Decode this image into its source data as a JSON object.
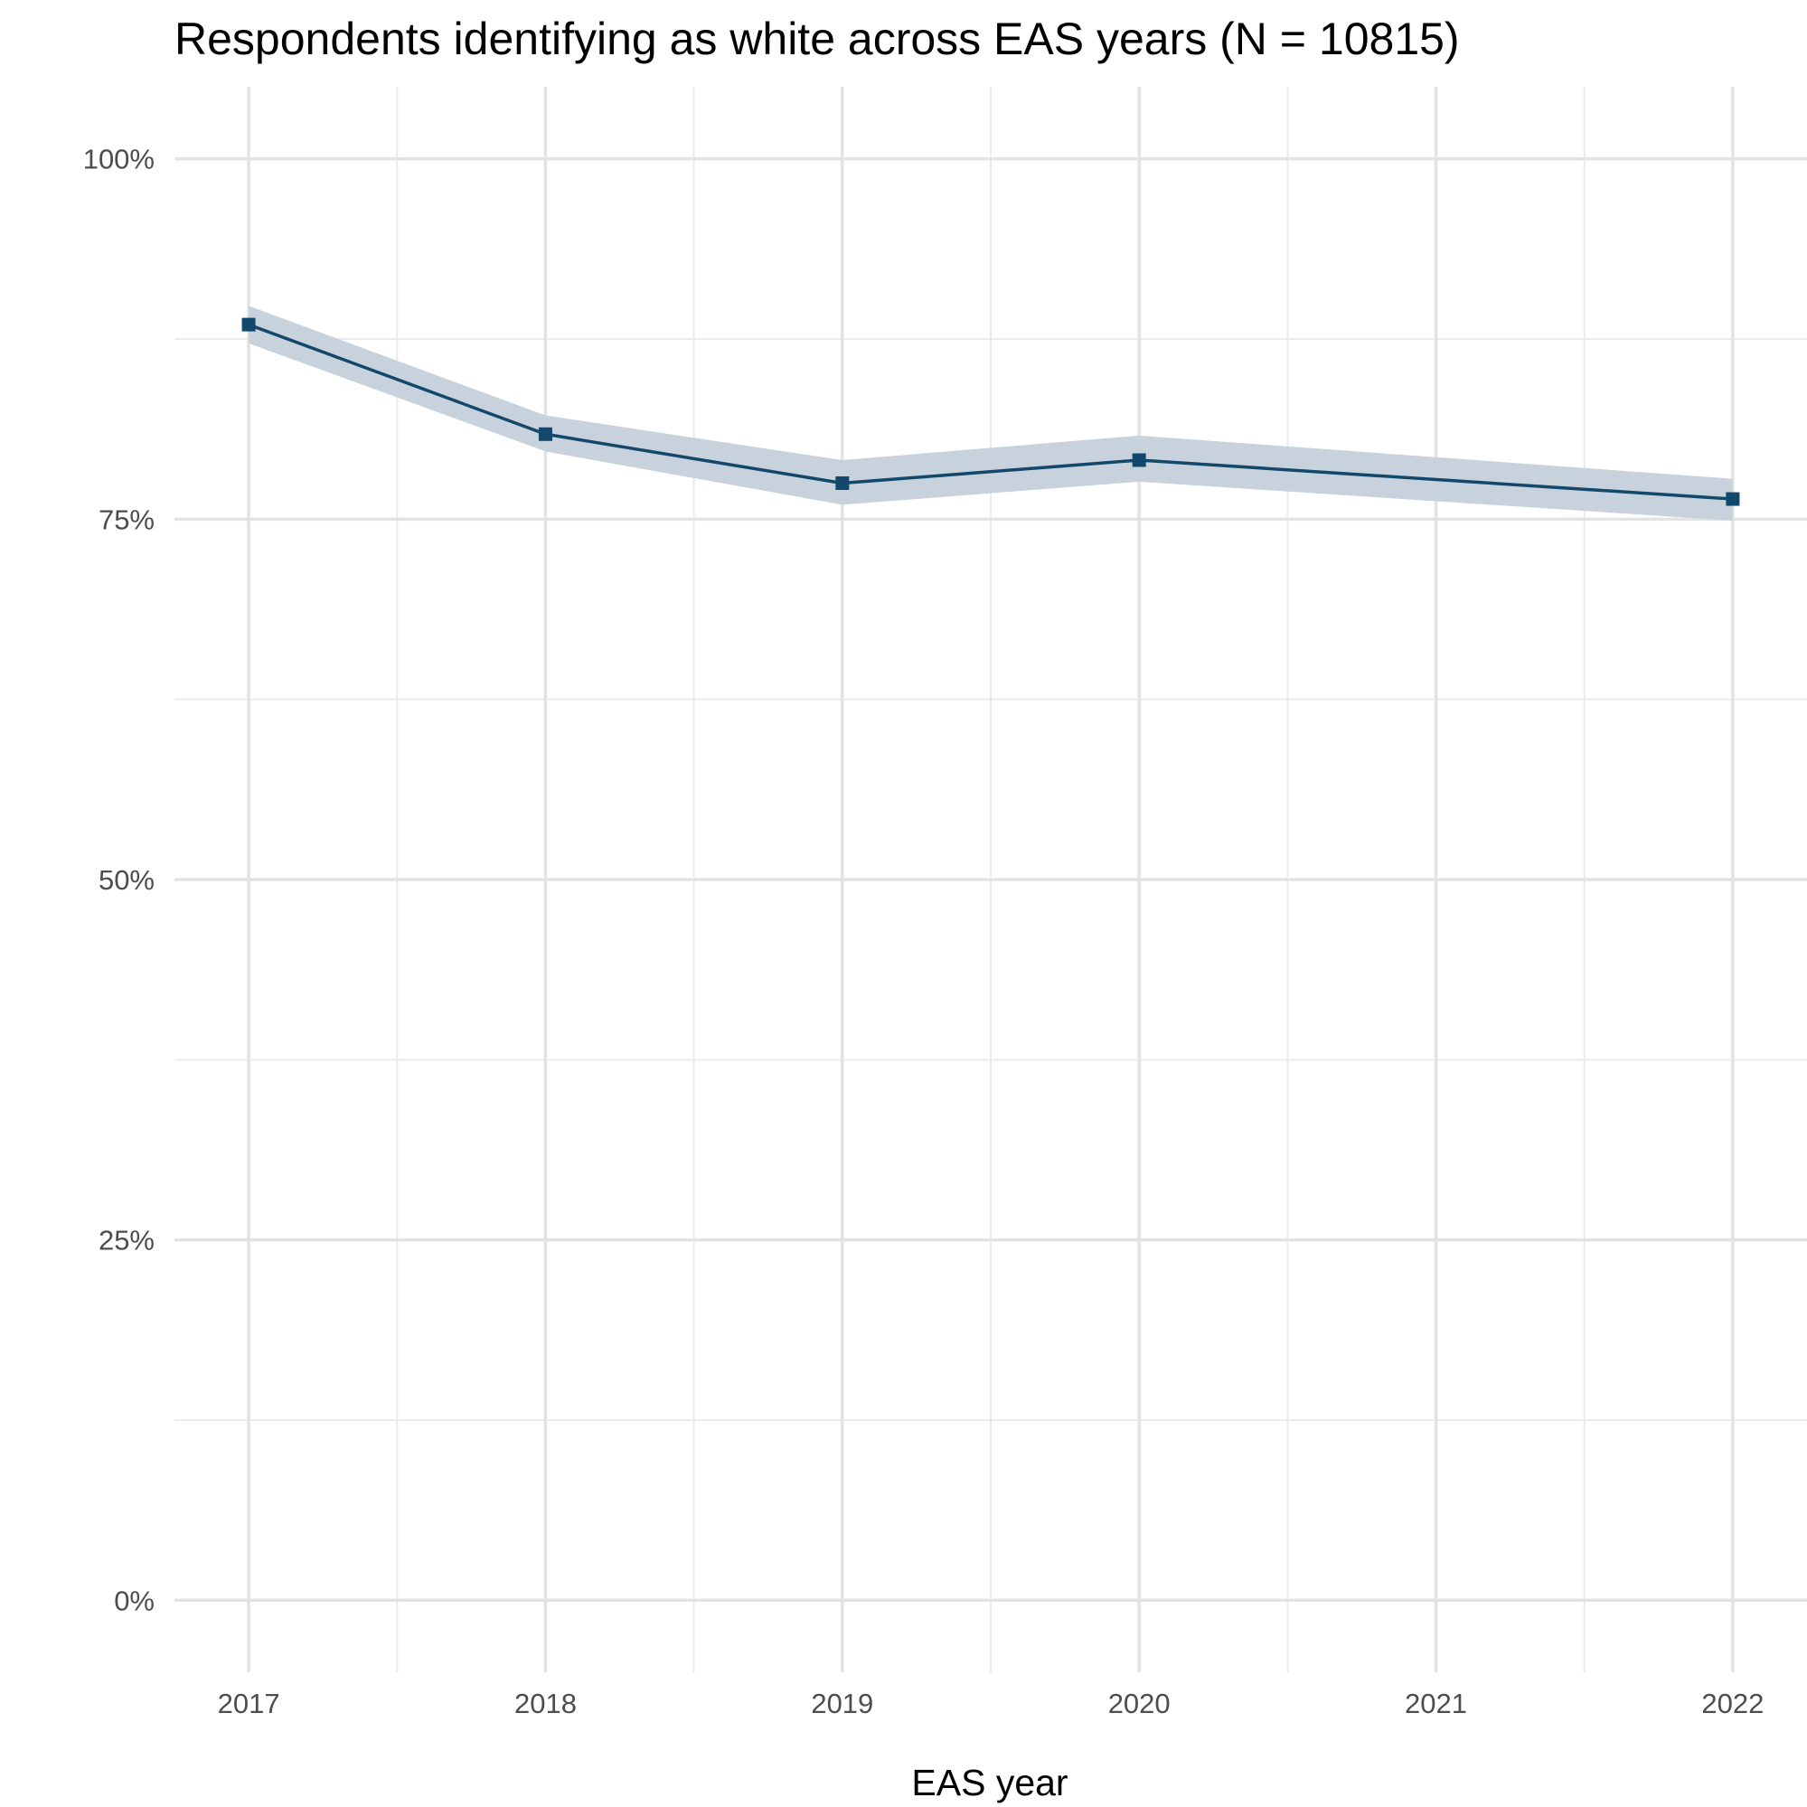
{
  "chart_data": {
    "type": "line",
    "title": "Respondents identifying as white across EAS years (N = 10815)",
    "xlabel": "EAS year",
    "ylabel": "",
    "x": [
      2017,
      2018,
      2019,
      2020,
      2022
    ],
    "x_ticks": [
      2017,
      2018,
      2019,
      2020,
      2021,
      2022
    ],
    "x_tick_labels": [
      "2017",
      "2018",
      "2019",
      "2020",
      "2021",
      "2022"
    ],
    "xlim": [
      2016.75,
      2022.25
    ],
    "y_ticks": [
      0,
      0.25,
      0.5,
      0.75,
      1.0
    ],
    "y_tick_labels": [
      "0%",
      "25%",
      "50%",
      "75%",
      "100%"
    ],
    "ylim": [
      -0.05,
      1.05
    ],
    "grid": true,
    "legend": "none",
    "series": [
      {
        "values": [
          0.885,
          0.809,
          0.775,
          0.791,
          0.764
        ],
        "lower": [
          0.872,
          0.797,
          0.76,
          0.776,
          0.749
        ],
        "upper": [
          0.898,
          0.822,
          0.791,
          0.808,
          0.778
        ],
        "color": "#12486b",
        "ribbon_color": "#c8d2dc",
        "marker": "square"
      }
    ]
  }
}
